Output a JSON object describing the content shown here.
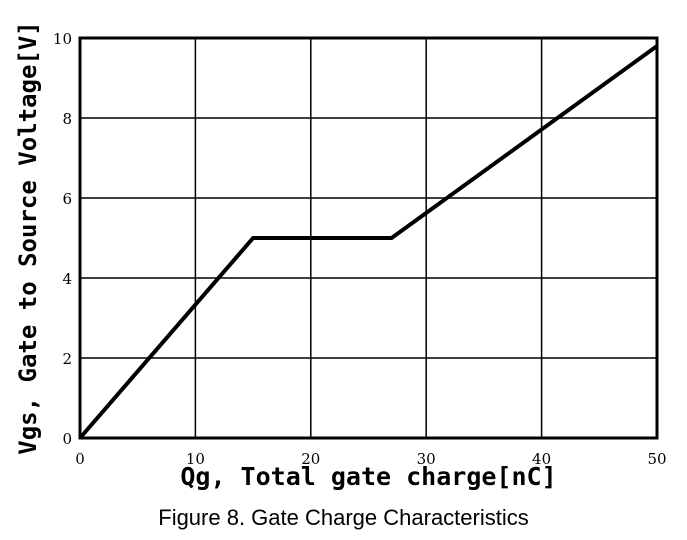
{
  "chart_data": {
    "type": "line",
    "caption": "Figure 8. Gate Charge Characteristics",
    "xlabel": "Qg, Total gate charge[nC]",
    "ylabel": "Vgs, Gate to Source Voltage[V]",
    "xlim": [
      0,
      50
    ],
    "ylim": [
      0,
      10
    ],
    "xticks": [
      0,
      10,
      20,
      30,
      40,
      50
    ],
    "yticks": [
      0,
      2,
      4,
      6,
      8,
      10
    ],
    "grid": true,
    "series": [
      {
        "x": [
          0,
          15,
          27,
          50
        ],
        "y": [
          0,
          5,
          5,
          9.8
        ]
      }
    ]
  }
}
